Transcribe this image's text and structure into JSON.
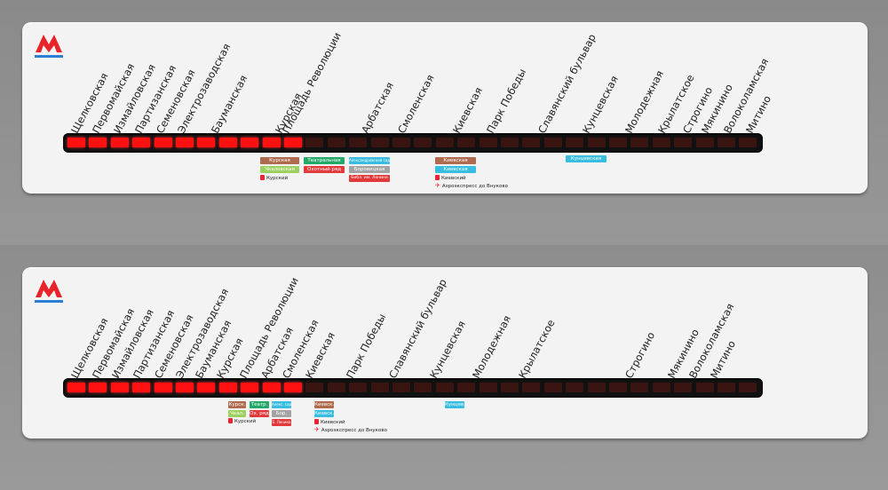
{
  "colors": {
    "red_line": "#e8232a",
    "blue_line": "#2d7fd6",
    "lit_segment": "#ff1111",
    "dim_segment": "#3a1410"
  },
  "logo_icon": "metro-m-icon",
  "panel_top": {
    "stations": [
      "Щелковская",
      "Первомайская",
      "Измайловская",
      "Партизанская",
      "Семеновская",
      "Электрозаводская",
      "Бауманская",
      "Курская",
      "Площадь Революции",
      "Арбатская",
      "Смоленская",
      "Киевская",
      "Парк Победы",
      "Славянский бульвар",
      "Кунцевская",
      "Молодежная",
      "Крылатское",
      "Строгино",
      "Мякинино",
      "Волоколамская",
      "Митино"
    ],
    "segments_total": 32,
    "segments_lit": 11,
    "transfers": {
      "kurskaya": [
        "Курская",
        "Чкаловская"
      ],
      "kurskaya_rail": "Курский",
      "ploshchad": [
        "Театральная",
        "Охотный ряд"
      ],
      "arbatskaya": [
        "Александровский сад",
        "Боровицкая",
        "Библ. им. Ленина"
      ],
      "kievskaya": [
        "Киевская",
        "Киевская"
      ],
      "kievskaya_rail": "Киевский",
      "aeroexpress": "Аэроэкспресс до Внуково",
      "kuntsevskaya": "Кунцевская"
    }
  },
  "panel_bottom": {
    "stations": [
      "Щелковская",
      "Первомайская",
      "Измайловская",
      "Партизанская",
      "Семеновская",
      "Электрозаводская",
      "Бауманская",
      "Курская",
      "Площадь Революции",
      "Арбатская",
      "Смоленская",
      "Киевская",
      "Парк Победы",
      "Славянский бульвар",
      "Кунцевская",
      "Молодежная",
      "Крылатское",
      "Строгино",
      "Мякинино",
      "Волоколамская",
      "Митино"
    ],
    "segments_total": 32,
    "segments_lit": 11,
    "transfers": {
      "kurskaya": [
        "Курск.",
        "Чкал."
      ],
      "kurskaya_rail": "Курский",
      "ploshchad": [
        "Театр.",
        "Ох. ряд"
      ],
      "arbatskaya": [
        "Алекс. сад",
        "Бор.",
        "Б. Ленина"
      ],
      "kievskaya": [
        "Киевск.",
        "Киевск."
      ],
      "kievskaya_rail": "Киевский",
      "aeroexpress": "Аэроэкспресс до Внуково",
      "kuntsevskaya": "Кунцев."
    }
  }
}
